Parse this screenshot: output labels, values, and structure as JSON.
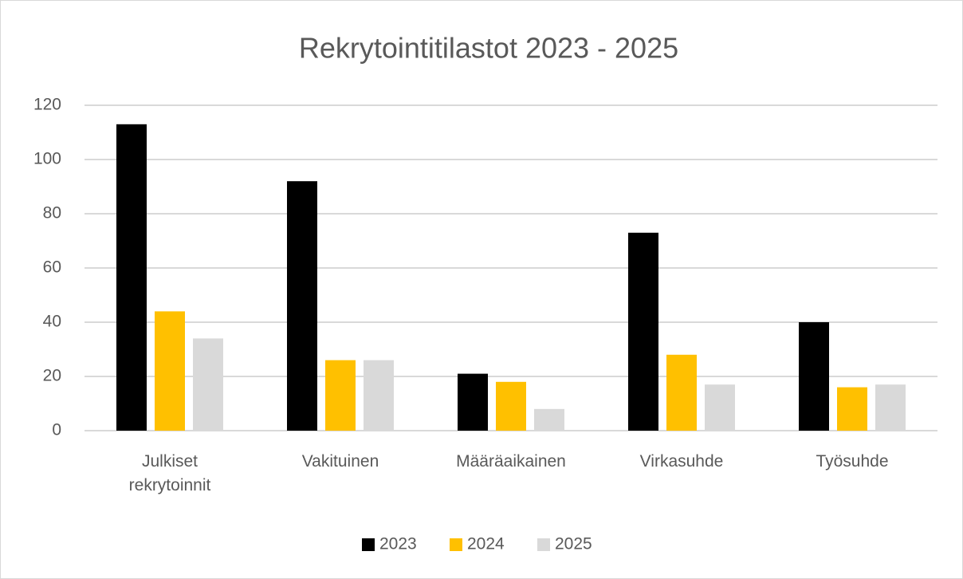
{
  "chart_data": {
    "type": "bar",
    "title": "Rekrytointitilastot 2023 - 2025",
    "categories": [
      "Julkiset rekrytoinnit",
      "Vakituinen",
      "Määräaikainen",
      "Virkasuhde",
      "Työsuhde"
    ],
    "series": [
      {
        "name": "2023",
        "color": "#000000",
        "values": [
          113,
          92,
          21,
          73,
          40
        ]
      },
      {
        "name": "2024",
        "color": "#ffc000",
        "values": [
          44,
          26,
          18,
          28,
          16
        ]
      },
      {
        "name": "2025",
        "color": "#d9d9d9",
        "values": [
          34,
          26,
          8,
          17,
          17
        ]
      }
    ],
    "ylim": [
      0,
      120
    ],
    "yticks": [
      0,
      20,
      40,
      60,
      80,
      100,
      120
    ],
    "grid": true,
    "legend": "bottom"
  }
}
